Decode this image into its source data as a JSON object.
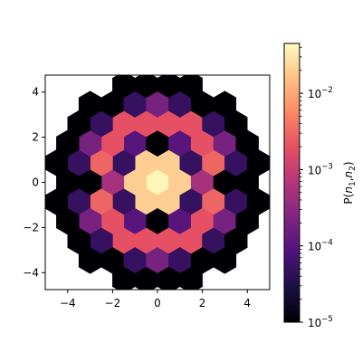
{
  "chart_data": {
    "type": "heatmap",
    "subtype": "hexbin",
    "x_ticks": [
      "−4",
      "−2",
      "0",
      "2",
      "4"
    ],
    "y_ticks": [
      "−4",
      "−2",
      "0",
      "2",
      "4"
    ],
    "x_tick_values": [
      -4,
      -2,
      0,
      2,
      4
    ],
    "y_tick_values": [
      -4,
      -2,
      0,
      2,
      4
    ],
    "xlim": [
      -5,
      5
    ],
    "ylim": [
      -4.75,
      4.75
    ],
    "colormap": "magma",
    "colorbar": {
      "label": "P(n1,n2)",
      "scale": "log",
      "range": [
        1e-05,
        0.045
      ],
      "tick_values": [
        1e-05,
        0.0001,
        0.001,
        0.01
      ],
      "tick_labels": [
        "10−5",
        "10−4",
        "10−3",
        "10−2"
      ]
    },
    "bins_description": "hexagonal bins; color encodes log10 of probability",
    "bins": [
      {
        "x": 0,
        "y": 0,
        "value": 0.04
      },
      {
        "x": -1,
        "y": 0,
        "value": 0.02
      },
      {
        "x": 1,
        "y": 0,
        "value": 0.02
      },
      {
        "x": -0.5,
        "y": 0.866,
        "value": 0.02
      },
      {
        "x": 0.5,
        "y": 0.866,
        "value": 0.02
      },
      {
        "x": -0.5,
        "y": -0.866,
        "value": 0.02
      },
      {
        "x": 0.5,
        "y": -0.866,
        "value": 0.02
      },
      {
        "x": -2,
        "y": 0,
        "value": 0.0005
      },
      {
        "x": 2,
        "y": 0,
        "value": 0.0005
      },
      {
        "x": -1.5,
        "y": 0.866,
        "value": 5e-05
      },
      {
        "x": 1.5,
        "y": 0.866,
        "value": 5e-05
      },
      {
        "x": -1.5,
        "y": -0.866,
        "value": 5e-05
      },
      {
        "x": 1.5,
        "y": -0.866,
        "value": 5e-05
      },
      {
        "x": -1,
        "y": 1.732,
        "value": 0.0001
      },
      {
        "x": 0,
        "y": 1.732,
        "value": 1e-05
      },
      {
        "x": 1,
        "y": 1.732,
        "value": 0.0001
      },
      {
        "x": -1,
        "y": -1.732,
        "value": 0.0001
      },
      {
        "x": 0,
        "y": -1.732,
        "value": 1e-05
      },
      {
        "x": 1,
        "y": -1.732,
        "value": 0.0001
      },
      {
        "x": -3,
        "y": 0,
        "value": 1e-05
      },
      {
        "x": 3,
        "y": 0,
        "value": 1e-05
      },
      {
        "x": -2.5,
        "y": 0.866,
        "value": 0.003
      },
      {
        "x": 2.5,
        "y": 0.866,
        "value": 0.003
      },
      {
        "x": -2.5,
        "y": -0.866,
        "value": 0.003
      },
      {
        "x": 2.5,
        "y": -0.866,
        "value": 0.003
      },
      {
        "x": -2,
        "y": 1.732,
        "value": 0.002
      },
      {
        "x": 2,
        "y": 1.732,
        "value": 0.002
      },
      {
        "x": -2,
        "y": -1.732,
        "value": 0.002
      },
      {
        "x": 2,
        "y": -1.732,
        "value": 0.002
      },
      {
        "x": -1.5,
        "y": 2.598,
        "value": 0.002
      },
      {
        "x": -0.5,
        "y": 2.598,
        "value": 0.002
      },
      {
        "x": 0.5,
        "y": 2.598,
        "value": 0.002
      },
      {
        "x": 1.5,
        "y": 2.598,
        "value": 0.002
      },
      {
        "x": -1.5,
        "y": -2.598,
        "value": 0.002
      },
      {
        "x": -0.5,
        "y": -2.598,
        "value": 0.002
      },
      {
        "x": 0.5,
        "y": -2.598,
        "value": 0.002
      },
      {
        "x": 1.5,
        "y": -2.598,
        "value": 0.002
      },
      {
        "x": -4,
        "y": 0,
        "value": 1e-05
      },
      {
        "x": 4,
        "y": 0,
        "value": 1e-05
      },
      {
        "x": -3.5,
        "y": 0.866,
        "value": 5e-05
      },
      {
        "x": 3.5,
        "y": 0.866,
        "value": 5e-05
      },
      {
        "x": -3.5,
        "y": -0.866,
        "value": 5e-05
      },
      {
        "x": 3.5,
        "y": -0.866,
        "value": 5e-05
      },
      {
        "x": -3,
        "y": 1.732,
        "value": 0.0002
      },
      {
        "x": 3,
        "y": 1.732,
        "value": 0.0002
      },
      {
        "x": -3,
        "y": -1.732,
        "value": 0.0002
      },
      {
        "x": 3,
        "y": -1.732,
        "value": 0.0002
      },
      {
        "x": -2.5,
        "y": 2.598,
        "value": 5e-05
      },
      {
        "x": 2.5,
        "y": 2.598,
        "value": 5e-05
      },
      {
        "x": -2.5,
        "y": -2.598,
        "value": 5e-05
      },
      {
        "x": 2.5,
        "y": -2.598,
        "value": 5e-05
      },
      {
        "x": -2,
        "y": 3.464,
        "value": 1e-05
      },
      {
        "x": -1,
        "y": 3.464,
        "value": 5e-05
      },
      {
        "x": 0,
        "y": 3.464,
        "value": 0.0002
      },
      {
        "x": 1,
        "y": 3.464,
        "value": 5e-05
      },
      {
        "x": 2,
        "y": 3.464,
        "value": 1e-05
      },
      {
        "x": -2,
        "y": -3.464,
        "value": 1e-05
      },
      {
        "x": -1,
        "y": -3.464,
        "value": 5e-05
      },
      {
        "x": 0,
        "y": -3.464,
        "value": 0.0002
      },
      {
        "x": 1,
        "y": -3.464,
        "value": 5e-05
      },
      {
        "x": 2,
        "y": -3.464,
        "value": 1e-05
      },
      {
        "x": -4.5,
        "y": 0.866,
        "value": 1e-05
      },
      {
        "x": 4.5,
        "y": 0.866,
        "value": 1e-05
      },
      {
        "x": -4.5,
        "y": -0.866,
        "value": 1e-05
      },
      {
        "x": 4.5,
        "y": -0.866,
        "value": 1e-05
      },
      {
        "x": -4,
        "y": 1.732,
        "value": 1e-05
      },
      {
        "x": 4,
        "y": 1.732,
        "value": 1e-05
      },
      {
        "x": -4,
        "y": -1.732,
        "value": 1e-05
      },
      {
        "x": 4,
        "y": -1.732,
        "value": 1e-05
      },
      {
        "x": -3.5,
        "y": 2.598,
        "value": 1e-05
      },
      {
        "x": 3.5,
        "y": 2.598,
        "value": 1e-05
      },
      {
        "x": -3.5,
        "y": -2.598,
        "value": 1e-05
      },
      {
        "x": 3.5,
        "y": -2.598,
        "value": 1e-05
      },
      {
        "x": -3,
        "y": 3.464,
        "value": 1e-05
      },
      {
        "x": 3,
        "y": 3.464,
        "value": 1e-05
      },
      {
        "x": -3,
        "y": -3.464,
        "value": 1e-05
      },
      {
        "x": 3,
        "y": -3.464,
        "value": 1e-05
      },
      {
        "x": -1.5,
        "y": 4.33,
        "value": 1e-05
      },
      {
        "x": -0.5,
        "y": 4.33,
        "value": 1e-05
      },
      {
        "x": 0.5,
        "y": 4.33,
        "value": 1e-05
      },
      {
        "x": 1.5,
        "y": 4.33,
        "value": 1e-05
      },
      {
        "x": -1.5,
        "y": -4.33,
        "value": 1e-05
      },
      {
        "x": -0.5,
        "y": -4.33,
        "value": 1e-05
      },
      {
        "x": 0.5,
        "y": -4.33,
        "value": 1e-05
      },
      {
        "x": 1.5,
        "y": -4.33,
        "value": 1e-05
      }
    ]
  }
}
